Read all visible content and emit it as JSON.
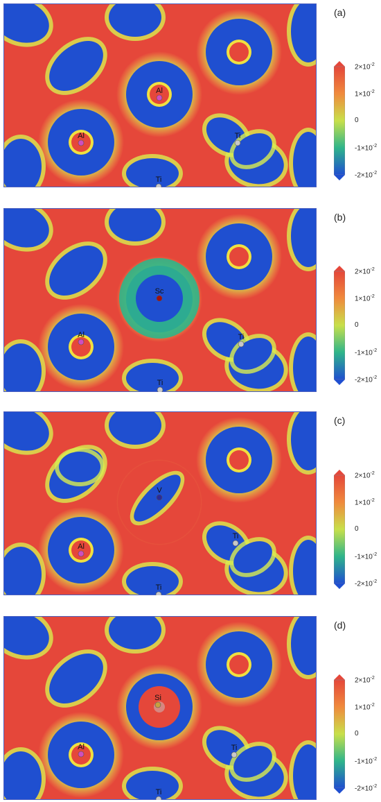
{
  "panels": [
    {
      "id": "a",
      "label": "(a)",
      "atoms": [
        {
          "symbol": "Al",
          "color": "#d04ec0"
        },
        {
          "symbol": "Al",
          "color": "#d04ec0"
        },
        {
          "symbol": "Ti",
          "color": "#c8c8c8"
        },
        {
          "symbol": "Ti",
          "color": "#c8c8c8"
        }
      ]
    },
    {
      "id": "b",
      "label": "(b)",
      "atoms": [
        {
          "symbol": "Sc",
          "color": "#a01010"
        },
        {
          "symbol": "Al",
          "color": "#d04ec0"
        },
        {
          "symbol": "Ti",
          "color": "#c8c8c8"
        },
        {
          "symbol": "Ti",
          "color": "#c8c8c8"
        }
      ]
    },
    {
      "id": "c",
      "label": "(c)",
      "atoms": [
        {
          "symbol": "V",
          "color": "#2a2a9a"
        },
        {
          "symbol": "Al",
          "color": "#d04ec0"
        },
        {
          "symbol": "Ti",
          "color": "#c8c8c8"
        },
        {
          "symbol": "Ti",
          "color": "#c8c8c8"
        }
      ]
    },
    {
      "id": "d",
      "label": "(d)",
      "atoms": [
        {
          "symbol": "Si",
          "color": "#c8a040"
        },
        {
          "symbol": "Al",
          "color": "#d04ec0"
        },
        {
          "symbol": "Ti",
          "color": "#c8c8c8"
        },
        {
          "symbol": "Ti",
          "color": "#c8c8c8"
        }
      ]
    }
  ],
  "colorbar": {
    "ticks": [
      {
        "mantissa": "2×10",
        "exp": "-2"
      },
      {
        "mantissa": "1×10",
        "exp": "-2"
      },
      {
        "mantissa": "0",
        "exp": ""
      },
      {
        "mantissa": "-1×10",
        "exp": "-2"
      },
      {
        "mantissa": "-2×10",
        "exp": "-2"
      }
    ],
    "colors": [
      "#e5473a",
      "#f08a3c",
      "#c8e04a",
      "#2fb58a",
      "#1f4fd0"
    ]
  }
}
